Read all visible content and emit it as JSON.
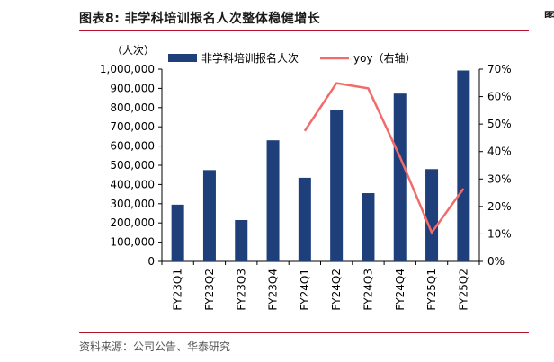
{
  "header": {
    "title": "图表8:  非学科培训报名人次整体稳健增长",
    "edge_glyph": "图"
  },
  "footer": {
    "source": "资料来源：公司公告、华泰研究",
    "edge_glyph": "资"
  },
  "colors": {
    "bar": "#1f3f7a",
    "line": "#f26b6b",
    "rule": "#b3122b"
  },
  "chart_data": {
    "type": "bar",
    "categories": [
      "FY23Q1",
      "FY23Q2",
      "FY23Q3",
      "FY23Q4",
      "FY24Q1",
      "FY24Q2",
      "FY24Q3",
      "FY24Q4",
      "FY25Q1",
      "FY25Q2"
    ],
    "y_unit_label": "（人次）",
    "ylim": [
      0,
      1000000
    ],
    "y_ticks": [
      "0",
      "100,000",
      "200,000",
      "300,000",
      "400,000",
      "500,000",
      "600,000",
      "700,000",
      "800,000",
      "900,000",
      "1,000,000"
    ],
    "y2lim": [
      0,
      70
    ],
    "y2_ticks": [
      "0%",
      "10%",
      "20%",
      "30%",
      "40%",
      "50%",
      "60%",
      "70%"
    ],
    "grid": false,
    "legend_position": "top",
    "series": [
      {
        "name": "非学科培训报名人次",
        "type": "bar",
        "axis": "left",
        "values": [
          295000,
          475000,
          215000,
          630000,
          435000,
          785000,
          355000,
          873000,
          480000,
          993000
        ]
      },
      {
        "name": "yoy（右轴）",
        "type": "line",
        "axis": "right",
        "values": [
          null,
          null,
          null,
          null,
          47.5,
          64.9,
          63.0,
          38.0,
          10.5,
          26.5
        ]
      }
    ]
  }
}
